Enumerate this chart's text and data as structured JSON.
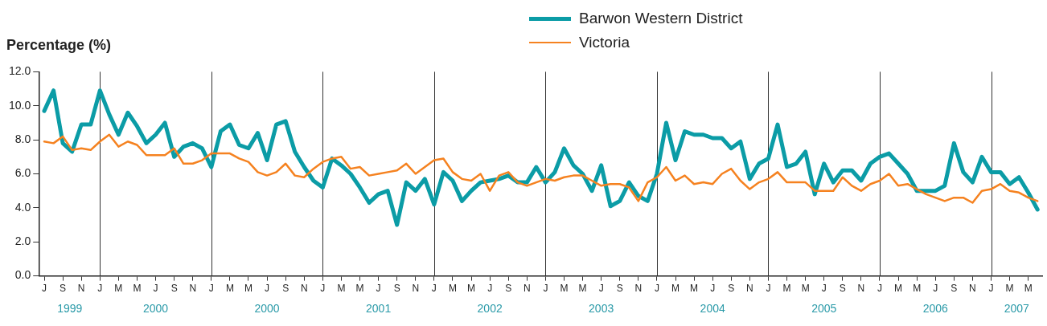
{
  "chart_data": {
    "type": "line",
    "ylabel": "Percentage (%)",
    "categories": [
      "J",
      null,
      "S",
      null,
      "N",
      null,
      "J",
      null,
      "M",
      null,
      "M",
      null,
      "J",
      null,
      "S",
      null,
      "N",
      null,
      "J",
      null,
      "M",
      null,
      "M",
      null,
      "J",
      null,
      "S",
      null,
      "N",
      null,
      "J",
      null,
      "M",
      null,
      "M",
      null,
      "J",
      null,
      "S",
      null,
      "N",
      null,
      "J",
      null,
      "M",
      null,
      "M",
      null,
      "J",
      null,
      "S",
      null,
      "N",
      null,
      "J",
      null,
      "M",
      null,
      "M",
      null,
      "J",
      null,
      "S",
      null,
      "N",
      null,
      "J",
      null,
      "M",
      null,
      "M",
      null,
      "J",
      null,
      "S",
      null,
      "N",
      null,
      "J",
      null,
      "M",
      null,
      "M",
      null,
      "J",
      null,
      "S",
      null,
      "N",
      null,
      "J",
      null,
      "M",
      null,
      "M",
      null,
      "J",
      null,
      "S",
      null,
      "N",
      null,
      "J",
      null,
      "M",
      null,
      "M",
      null
    ],
    "series": [
      {
        "name": "Barwon Western District",
        "color": "#0b9ca6",
        "values": [
          9.7,
          10.9,
          7.8,
          7.3,
          8.9,
          8.9,
          10.9,
          9.5,
          8.3,
          9.6,
          8.8,
          7.8,
          8.3,
          9.0,
          7.0,
          7.6,
          7.8,
          7.5,
          6.4,
          8.5,
          8.9,
          7.7,
          7.5,
          8.4,
          6.8,
          8.9,
          9.1,
          7.3,
          6.4,
          5.6,
          5.2,
          6.9,
          6.5,
          6.0,
          5.2,
          4.3,
          4.8,
          5.0,
          3.0,
          5.5,
          5.0,
          5.7,
          4.2,
          6.1,
          5.6,
          4.4,
          5.0,
          5.5,
          5.6,
          5.7,
          5.9,
          5.5,
          5.5,
          6.4,
          5.5,
          6.1,
          7.5,
          6.5,
          6.0,
          5.0,
          6.5,
          4.1,
          4.4,
          5.5,
          4.7,
          4.4,
          6.0,
          9.0,
          6.8,
          8.5,
          8.3,
          8.3,
          8.1,
          8.1,
          7.5,
          7.9,
          5.7,
          6.6,
          6.9,
          8.9,
          6.4,
          6.6,
          7.3,
          4.8,
          6.6,
          5.5,
          6.2,
          6.2,
          5.6,
          6.6,
          7.0,
          7.2,
          6.6,
          6.0,
          5.0,
          5.0,
          5.0,
          5.3,
          7.8,
          6.1,
          5.5,
          7.0,
          6.1,
          6.1,
          5.4,
          5.8,
          4.9,
          3.9
        ]
      },
      {
        "name": "Victoria",
        "color": "#f58220",
        "values": [
          7.9,
          7.8,
          8.2,
          7.4,
          7.5,
          7.4,
          7.9,
          8.3,
          7.6,
          7.9,
          7.7,
          7.1,
          7.1,
          7.1,
          7.5,
          6.6,
          6.6,
          6.8,
          7.2,
          7.2,
          7.2,
          6.9,
          6.7,
          6.1,
          5.9,
          6.1,
          6.6,
          5.9,
          5.8,
          6.3,
          6.7,
          6.9,
          7.0,
          6.3,
          6.4,
          5.9,
          6.0,
          6.1,
          6.2,
          6.6,
          6.0,
          6.4,
          6.8,
          6.9,
          6.1,
          5.7,
          5.6,
          6.0,
          5.0,
          5.9,
          6.1,
          5.5,
          5.3,
          5.5,
          5.7,
          5.6,
          5.8,
          5.9,
          5.9,
          5.6,
          5.3,
          5.4,
          5.4,
          5.2,
          4.4,
          5.5,
          5.8,
          6.4,
          5.6,
          5.9,
          5.4,
          5.5,
          5.4,
          6.0,
          6.3,
          5.6,
          5.1,
          5.5,
          5.7,
          6.1,
          5.5,
          5.5,
          5.5,
          5.0,
          5.0,
          5.0,
          5.8,
          5.3,
          5.0,
          5.4,
          5.6,
          6.0,
          5.3,
          5.4,
          5.1,
          4.8,
          4.6,
          4.4,
          4.6,
          4.6,
          4.3,
          5.0,
          5.1,
          5.4,
          5.0,
          4.9,
          4.6,
          4.4
        ]
      }
    ],
    "ylim": [
      0,
      12
    ],
    "yticks": [
      {
        "value": 0,
        "label": "0.0"
      },
      {
        "value": 2,
        "label": "2.0"
      },
      {
        "value": 4,
        "label": "4.0"
      },
      {
        "value": 6,
        "label": "6.0"
      },
      {
        "value": 8,
        "label": "8.0"
      },
      {
        "value": 10,
        "label": "10.0"
      },
      {
        "value": 12,
        "label": "12.0"
      }
    ],
    "annotations": [
      "1999",
      "2000",
      "2000",
      "2001",
      "2002",
      "2003",
      "2004",
      "2005",
      "2006",
      "2007"
    ],
    "grid": "x",
    "legend": "top",
    "line_style": "solid",
    "marker": "none"
  }
}
